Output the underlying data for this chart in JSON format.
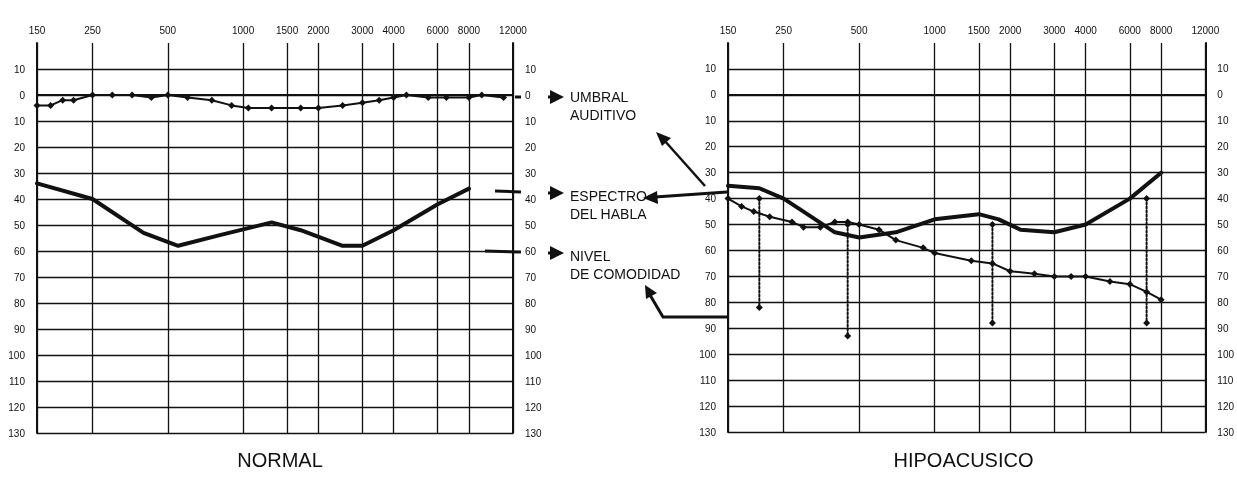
{
  "chart_data": [
    {
      "type": "line",
      "title": "NORMAL",
      "annotations": [
        "UMBRAL\nAUDITIVO",
        "ESPECTRO\nDEL HABLA",
        "NIVEL\nDE COMODIDAD"
      ],
      "grid": true,
      "log": "x",
      "xlim": [
        150,
        12000
      ],
      "xticks": [
        150,
        250,
        500,
        1000,
        1500,
        2000,
        3000,
        4000,
        6000,
        8000,
        12000
      ],
      "ylim": [
        130,
        -20
      ],
      "yticks": [
        {
          "value": -10,
          "label": "10"
        },
        0,
        10,
        20,
        30,
        40,
        50,
        60,
        70,
        80,
        90,
        100,
        110,
        120,
        130
      ],
      "y2lim": [
        130,
        -20
      ],
      "y2ticks": [
        {
          "value": -10,
          "label": "10"
        },
        0,
        10,
        20,
        30,
        40,
        50,
        60,
        70,
        80,
        90,
        100,
        110,
        120,
        130
      ],
      "series": [
        {
          "color": "#111111",
          "marker": "diamond",
          "line_style": "solid",
          "x": [
            150,
            170,
            190,
            210,
            250,
            300,
            360,
            430,
            500,
            600,
            750,
            900,
            1050,
            1300,
            1700,
            2000,
            2500,
            3000,
            3500,
            4000,
            4500,
            5500,
            6500,
            8000,
            9000,
            11000
          ],
          "values": [
            4,
            4,
            2,
            2,
            0,
            0,
            0,
            1,
            0,
            1,
            2,
            4,
            5,
            5,
            5,
            5,
            4,
            3,
            2,
            1,
            0,
            1,
            1,
            1,
            0,
            1
          ]
        },
        {
          "color": "#111111",
          "marker": "none",
          "line_style": "solid",
          "x": [
            150,
            250,
            400,
            550,
            800,
            1300,
            1700,
            2500,
            3000,
            4000,
            6000,
            8000
          ],
          "values": [
            34,
            40,
            53,
            58,
            54,
            49,
            52,
            58,
            58,
            52,
            42,
            36
          ]
        }
      ]
    },
    {
      "type": "line",
      "title": "HIPOACUSICO",
      "grid": true,
      "log": "x",
      "xlim": [
        150,
        12000
      ],
      "xticks": [
        150,
        250,
        500,
        1000,
        1500,
        2000,
        3000,
        4000,
        6000,
        8000,
        12000
      ],
      "ylim": [
        130,
        -20
      ],
      "yticks": [
        {
          "value": -10,
          "label": "10"
        },
        0,
        10,
        20,
        30,
        40,
        50,
        60,
        70,
        80,
        90,
        100,
        110,
        120,
        130
      ],
      "y2lim": [
        130,
        -20
      ],
      "y2ticks": [
        {
          "value": -10,
          "label": "10"
        },
        0,
        10,
        20,
        30,
        40,
        50,
        60,
        70,
        80,
        90,
        100,
        110,
        120,
        130
      ],
      "series": [
        {
          "color": "#111111",
          "marker": "diamond",
          "line_style": "solid",
          "x": [
            150,
            170,
            190,
            220,
            270,
            300,
            350,
            400,
            450,
            500,
            600,
            700,
            900,
            1000,
            1400,
            1700,
            2000,
            2500,
            3000,
            3500,
            4000,
            5000,
            6000,
            7000,
            8000
          ],
          "values": [
            40,
            43,
            45,
            47,
            49,
            51,
            51,
            49,
            49,
            50,
            52,
            56,
            59,
            61,
            64,
            65,
            68,
            69,
            70,
            70,
            70,
            72,
            73,
            76,
            79
          ]
        },
        {
          "color": "#111111",
          "marker": "none",
          "line_style": "solid",
          "x": [
            150,
            200,
            250,
            300,
            400,
            500,
            700,
            1000,
            1500,
            1800,
            2200,
            3000,
            4000,
            6000,
            8000
          ],
          "values": [
            35,
            36,
            40,
            45,
            53,
            55,
            53,
            48,
            46,
            48,
            52,
            53,
            50,
            40,
            30
          ]
        },
        {
          "color": "#111111",
          "marker": "diamond",
          "line_style": "dotted",
          "x": [
            200,
            200
          ],
          "values": [
            40,
            82
          ]
        },
        {
          "color": "#111111",
          "marker": "diamond",
          "line_style": "dotted",
          "x": [
            450,
            450
          ],
          "values": [
            50,
            93
          ]
        },
        {
          "color": "#111111",
          "marker": "diamond",
          "line_style": "dotted",
          "x": [
            1700,
            1700
          ],
          "values": [
            50,
            88
          ]
        },
        {
          "color": "#111111",
          "marker": "diamond",
          "line_style": "dotted",
          "x": [
            7000,
            7000
          ],
          "values": [
            40,
            88
          ]
        }
      ]
    }
  ]
}
